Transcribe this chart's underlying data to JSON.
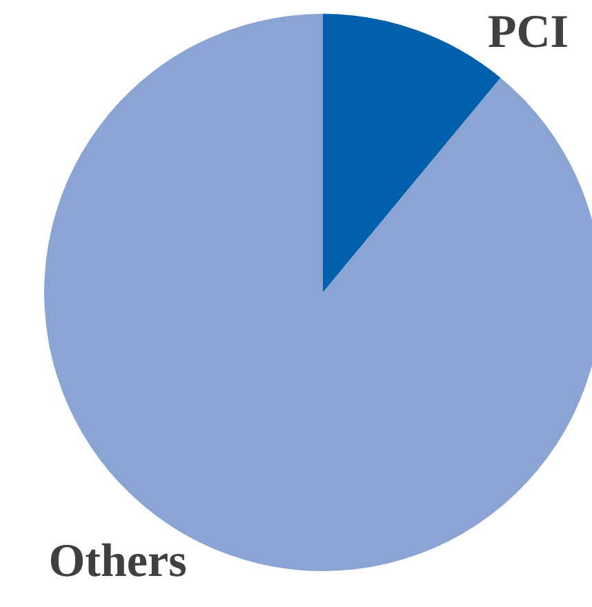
{
  "chart_data": {
    "type": "pie",
    "categories": [
      "PCI",
      "Others"
    ],
    "values": [
      11,
      89
    ],
    "colors": [
      "#0060ab",
      "#8aa4d4"
    ]
  }
}
